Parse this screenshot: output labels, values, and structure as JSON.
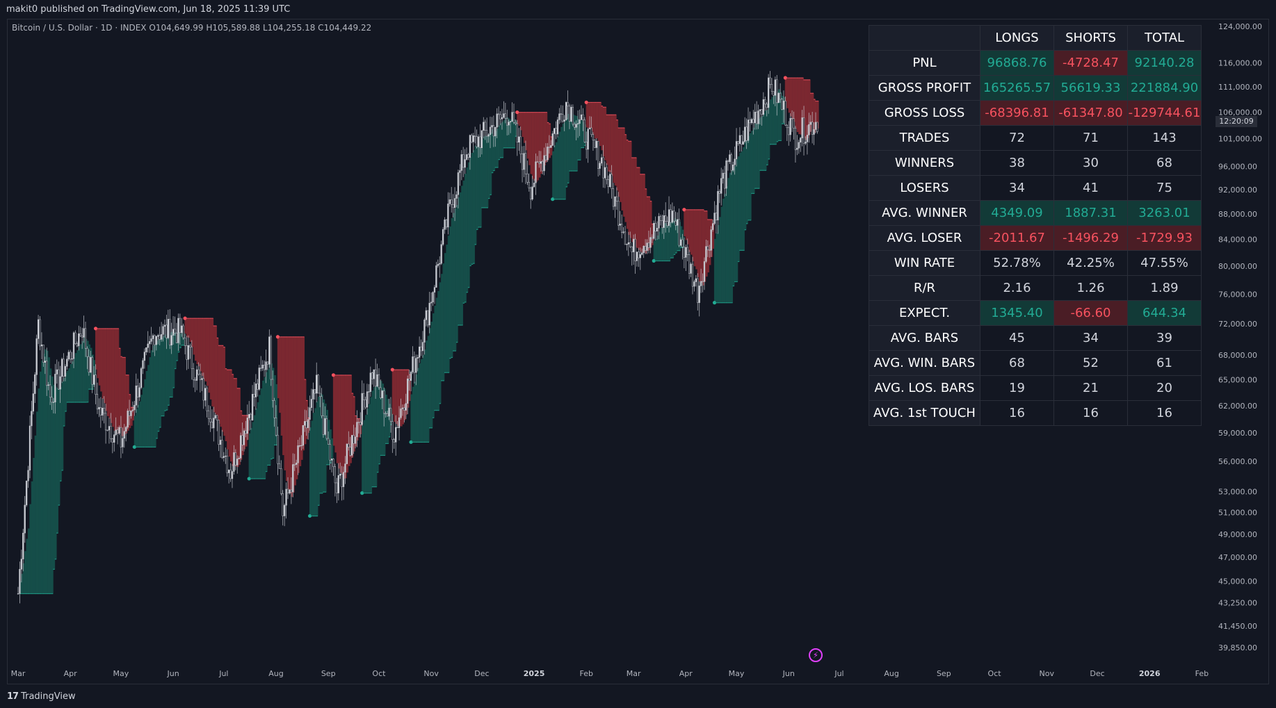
{
  "header": {
    "published": "makit0 published on TradingView.com, Jun 18, 2025 11:39 UTC"
  },
  "symbol": {
    "name": "Bitcoin / U.S. Dollar · 1D · INDEX",
    "o_label": "O",
    "o": "104,649.99",
    "h_label": "H",
    "h": "105,589.88",
    "l_label": "L",
    "l": "104,255.18",
    "c_label": "C",
    "c": "104,449.22"
  },
  "footer": {
    "brand": "TradingView",
    "logo_text": "17"
  },
  "countdown": "12:20:09",
  "colors": {
    "bg": "#131722",
    "up": "#22ab94",
    "down": "#f7525f",
    "band_up": "#16564f",
    "band_down": "#8b2a33",
    "candle": "#c7cad1"
  },
  "chart_data": {
    "type": "candlestick",
    "series_name": "Bitcoin / U.S. Dollar",
    "yscale": "log",
    "ylim": [
      38500,
      125000
    ],
    "y_ticks": [
      "124,000.00",
      "116,000.00",
      "111,000.00",
      "106,000.00",
      "101,000.00",
      "96,000.00",
      "92,000.00",
      "88,000.00",
      "84,000.00",
      "80,000.00",
      "76,000.00",
      "72,000.00",
      "68,000.00",
      "65,000.00",
      "62,000.00",
      "59,000.00",
      "56,000.00",
      "53,000.00",
      "51,000.00",
      "49,000.00",
      "47,000.00",
      "45,000.00",
      "43,250.00",
      "41,450.00",
      "39,850.00"
    ],
    "x_ticks": [
      "Mar",
      "Apr",
      "May",
      "Jun",
      "Jul",
      "Aug",
      "Sep",
      "Oct",
      "Nov",
      "Dec",
      "2025",
      "Feb",
      "Mar",
      "Apr",
      "May",
      "Jun",
      "Jul",
      "Aug",
      "Sep",
      "Oct",
      "Nov",
      "Dec",
      "2026",
      "Feb"
    ],
    "x_ticks_bold": [
      "2025",
      "2026"
    ],
    "price_path": [
      {
        "date": "2024-03-01",
        "price": 44000
      },
      {
        "date": "2024-03-13",
        "price": 72000
      },
      {
        "date": "2024-03-20",
        "price": 63000
      },
      {
        "date": "2024-04-08",
        "price": 71500
      },
      {
        "date": "2024-04-18",
        "price": 61500
      },
      {
        "date": "2024-05-01",
        "price": 58000
      },
      {
        "date": "2024-05-21",
        "price": 71000
      },
      {
        "date": "2024-06-05",
        "price": 71000
      },
      {
        "date": "2024-06-25",
        "price": 60500
      },
      {
        "date": "2024-07-05",
        "price": 55000
      },
      {
        "date": "2024-07-28",
        "price": 69000
      },
      {
        "date": "2024-08-05",
        "price": 51000
      },
      {
        "date": "2024-08-25",
        "price": 64000
      },
      {
        "date": "2024-09-06",
        "price": 53000
      },
      {
        "date": "2024-09-27",
        "price": 66000
      },
      {
        "date": "2024-10-10",
        "price": 59000
      },
      {
        "date": "2024-10-29",
        "price": 72500
      },
      {
        "date": "2024-11-12",
        "price": 89000
      },
      {
        "date": "2024-11-22",
        "price": 99000
      },
      {
        "date": "2024-12-17",
        "price": 106000
      },
      {
        "date": "2024-12-30",
        "price": 92500
      },
      {
        "date": "2025-01-20",
        "price": 108000
      },
      {
        "date": "2025-02-10",
        "price": 97000
      },
      {
        "date": "2025-02-28",
        "price": 82000
      },
      {
        "date": "2025-03-24",
        "price": 88000
      },
      {
        "date": "2025-04-08",
        "price": 76500
      },
      {
        "date": "2025-04-22",
        "price": 93000
      },
      {
        "date": "2025-05-08",
        "price": 103000
      },
      {
        "date": "2025-05-22",
        "price": 111500
      },
      {
        "date": "2025-06-05",
        "price": 101500
      },
      {
        "date": "2025-06-18",
        "price": 104449
      }
    ],
    "stats_table": {
      "columns": [
        "",
        "LONGS",
        "SHORTS",
        "TOTAL"
      ],
      "rows": [
        {
          "label": "PNL",
          "values": [
            "96868.76",
            "-4728.47",
            "92140.28"
          ],
          "tone": [
            "pos",
            "neg",
            "pos"
          ]
        },
        {
          "label": "GROSS PROFIT",
          "values": [
            "165265.57",
            "56619.33",
            "221884.90"
          ],
          "tone": [
            "pos",
            "pos",
            "pos"
          ]
        },
        {
          "label": "GROSS LOSS",
          "values": [
            "-68396.81",
            "-61347.80",
            "-129744.61"
          ],
          "tone": [
            "neg",
            "neg",
            "neg"
          ]
        },
        {
          "label": "TRADES",
          "values": [
            "72",
            "71",
            "143"
          ],
          "tone": [
            "neutral",
            "neutral",
            "neutral"
          ]
        },
        {
          "label": "WINNERS",
          "values": [
            "38",
            "30",
            "68"
          ],
          "tone": [
            "neutral",
            "neutral",
            "neutral"
          ]
        },
        {
          "label": "LOSERS",
          "values": [
            "34",
            "41",
            "75"
          ],
          "tone": [
            "neutral",
            "neutral",
            "neutral"
          ]
        },
        {
          "label": "AVG. WINNER",
          "values": [
            "4349.09",
            "1887.31",
            "3263.01"
          ],
          "tone": [
            "pos",
            "pos",
            "pos"
          ]
        },
        {
          "label": "AVG. LOSER",
          "values": [
            "-2011.67",
            "-1496.29",
            "-1729.93"
          ],
          "tone": [
            "neg",
            "neg",
            "neg"
          ]
        },
        {
          "label": "WIN RATE",
          "values": [
            "52.78%",
            "42.25%",
            "47.55%"
          ],
          "tone": [
            "neutral",
            "neutral",
            "neutral"
          ]
        },
        {
          "label": "R/R",
          "values": [
            "2.16",
            "1.26",
            "1.89"
          ],
          "tone": [
            "neutral",
            "neutral",
            "neutral"
          ]
        },
        {
          "label": "EXPECT.",
          "values": [
            "1345.40",
            "-66.60",
            "644.34"
          ],
          "tone": [
            "pos",
            "neg",
            "pos"
          ]
        },
        {
          "label": "AVG. BARS",
          "values": [
            "45",
            "34",
            "39"
          ],
          "tone": [
            "neutral",
            "neutral",
            "neutral"
          ]
        },
        {
          "label": "AVG. WIN. BARS",
          "values": [
            "68",
            "52",
            "61"
          ],
          "tone": [
            "neutral",
            "neutral",
            "neutral"
          ]
        },
        {
          "label": "AVG. LOS. BARS",
          "values": [
            "19",
            "21",
            "20"
          ],
          "tone": [
            "neutral",
            "neutral",
            "neutral"
          ]
        },
        {
          "label": "AVG. 1st TOUCH",
          "values": [
            "16",
            "16",
            "16"
          ],
          "tone": [
            "neutral",
            "neutral",
            "neutral"
          ]
        }
      ]
    }
  }
}
